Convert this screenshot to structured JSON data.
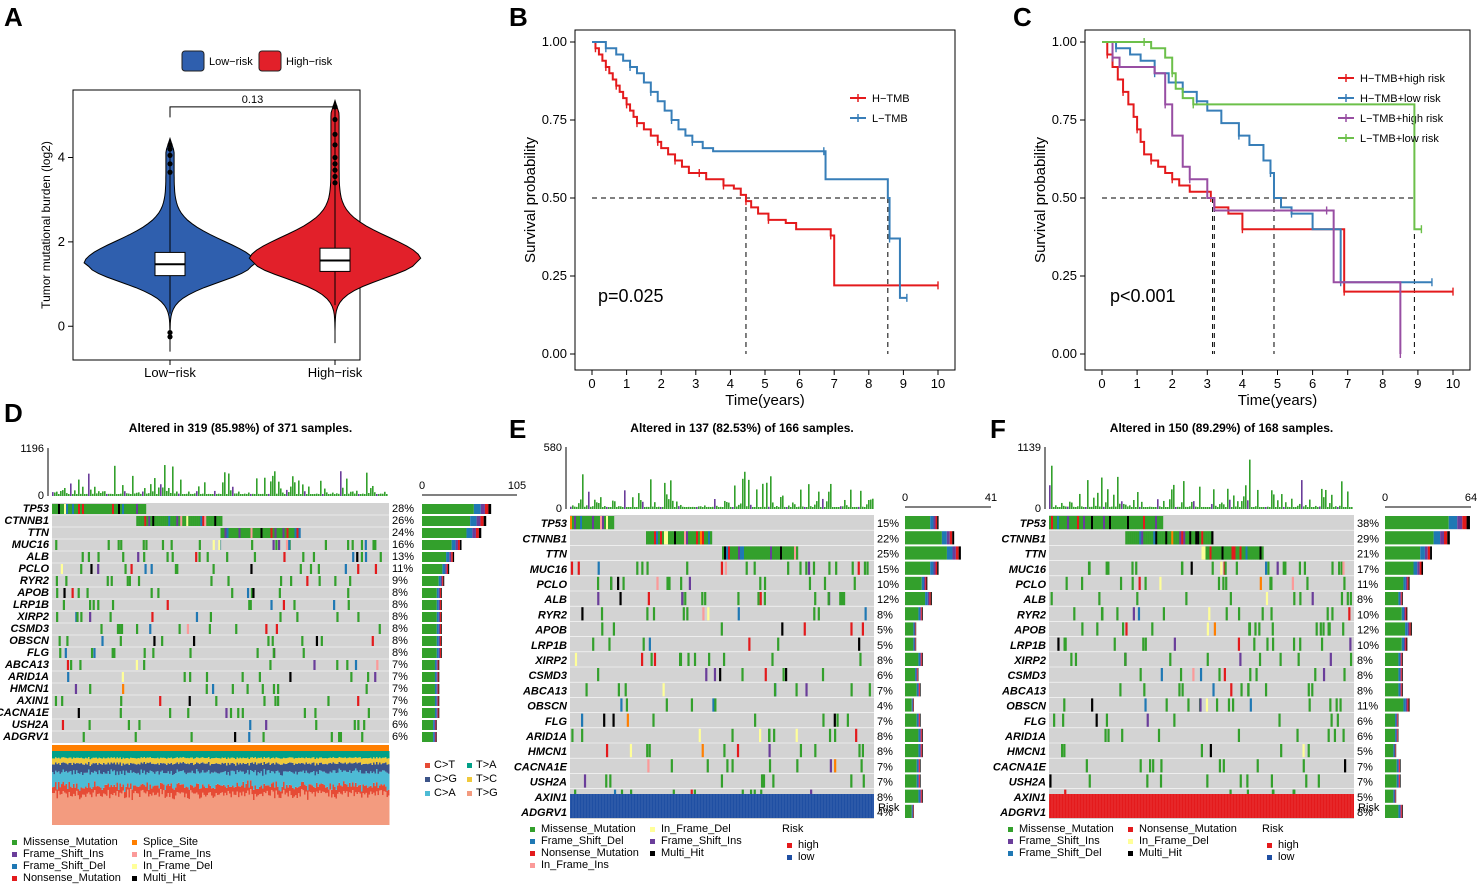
{
  "colors": {
    "low_risk": "#2f5fae",
    "high_risk": "#e2202a",
    "missense": "#33a02c",
    "frame_shift_del": "#1f78b4",
    "frame_shift_ins": "#6a3d9a",
    "nonsense": "#e31a1c",
    "multi_hit": "#000000",
    "splice_site": "#ff7f00",
    "in_frame_ins": "#fb9a99",
    "in_frame_del": "#ffff99",
    "grey": "#d3d3d3",
    "h_tmb": "#e41a1c",
    "l_tmb": "#377eb8",
    "h_high": "#e41a1c",
    "h_low": "#377eb8",
    "l_high": "#984ea3",
    "l_low": "#6cc04a",
    "low_bar": "#1f4fa3",
    "high_bar": "#e41a1c"
  },
  "panel_labels": {
    "a": "A",
    "b": "B",
    "c": "C",
    "d": "D",
    "e": "E",
    "f": "F"
  },
  "chart_data": [
    {
      "id": "A",
      "type": "violin",
      "legend": [
        "Low−risk",
        "High−risk"
      ],
      "categories": [
        "Low−risk",
        "High−risk"
      ],
      "ylabel": "Tumor mutational burden (log2)",
      "yticks": [
        "0",
        "2",
        "4"
      ],
      "ylim": [
        -0.8,
        5.6
      ],
      "pvalue": "0.13",
      "series": [
        {
          "name": "Low−risk",
          "median": 1.47,
          "q1": 1.2,
          "q3": 1.75,
          "whisker_low": 0.3,
          "whisker_high": 4.45,
          "outliers": [
            3.65,
            3.85,
            4.05,
            4.2,
            4.3,
            -0.15,
            -0.25
          ]
        },
        {
          "name": "High−risk",
          "median": 1.56,
          "q1": 1.3,
          "q3": 1.85,
          "whisker_low": 0.5,
          "whisker_high": 5.35,
          "outliers": [
            3.4,
            3.55,
            3.7,
            3.85,
            4.0,
            4.3,
            4.55,
            4.9,
            5.2
          ]
        }
      ]
    },
    {
      "id": "B",
      "type": "line",
      "xlabel": "Time(years)",
      "ylabel": "Survival probability",
      "xticks": [
        "0",
        "1",
        "2",
        "3",
        "4",
        "5",
        "6",
        "7",
        "8",
        "9",
        "10"
      ],
      "yticks": [
        "0.00",
        "0.25",
        "0.50",
        "0.75",
        "1.00"
      ],
      "xlim": [
        0,
        10
      ],
      "ylim": [
        0,
        1
      ],
      "pvalue": "p=0.025",
      "median_times": [
        4.45,
        8.55
      ],
      "series": [
        {
          "name": "H−TMB",
          "steps": [
            [
              0,
              1
            ],
            [
              0.1,
              0.98
            ],
            [
              0.2,
              0.96
            ],
            [
              0.3,
              0.94
            ],
            [
              0.4,
              0.92
            ],
            [
              0.5,
              0.9
            ],
            [
              0.6,
              0.88
            ],
            [
              0.7,
              0.86
            ],
            [
              0.8,
              0.84
            ],
            [
              0.9,
              0.82
            ],
            [
              1.0,
              0.8
            ],
            [
              1.1,
              0.78
            ],
            [
              1.2,
              0.76
            ],
            [
              1.3,
              0.74
            ],
            [
              1.5,
              0.72
            ],
            [
              1.7,
              0.7
            ],
            [
              1.9,
              0.68
            ],
            [
              2.0,
              0.66
            ],
            [
              2.2,
              0.64
            ],
            [
              2.4,
              0.62
            ],
            [
              2.6,
              0.6
            ],
            [
              2.8,
              0.58
            ],
            [
              3.1,
              0.58
            ],
            [
              3.3,
              0.56
            ],
            [
              3.6,
              0.56
            ],
            [
              3.8,
              0.54
            ],
            [
              4.1,
              0.53
            ],
            [
              4.3,
              0.51
            ],
            [
              4.45,
              0.49
            ],
            [
              4.6,
              0.47
            ],
            [
              4.8,
              0.45
            ],
            [
              5.1,
              0.43
            ],
            [
              5.6,
              0.42
            ],
            [
              5.9,
              0.4
            ],
            [
              6.9,
              0.38
            ],
            [
              7.0,
              0.22
            ],
            [
              10.0,
              0.22
            ]
          ]
        },
        {
          "name": "L−TMB",
          "steps": [
            [
              0,
              1
            ],
            [
              0.4,
              0.98
            ],
            [
              0.7,
              0.96
            ],
            [
              0.9,
              0.94
            ],
            [
              1.1,
              0.92
            ],
            [
              1.3,
              0.9
            ],
            [
              1.5,
              0.87
            ],
            [
              1.7,
              0.84
            ],
            [
              1.9,
              0.81
            ],
            [
              2.1,
              0.78
            ],
            [
              2.3,
              0.75
            ],
            [
              2.5,
              0.72
            ],
            [
              2.7,
              0.7
            ],
            [
              2.9,
              0.68
            ],
            [
              3.2,
              0.66
            ],
            [
              3.5,
              0.65
            ],
            [
              6.7,
              0.65
            ],
            [
              6.75,
              0.56
            ],
            [
              8.55,
              0.5
            ],
            [
              8.6,
              0.37
            ],
            [
              8.9,
              0.18
            ],
            [
              9.1,
              0.18
            ]
          ]
        }
      ]
    },
    {
      "id": "C",
      "type": "line",
      "xlabel": "Time(years)",
      "ylabel": "Survival probability",
      "xticks": [
        "0",
        "1",
        "2",
        "3",
        "4",
        "5",
        "6",
        "7",
        "8",
        "9",
        "10"
      ],
      "yticks": [
        "0.00",
        "0.25",
        "0.50",
        "0.75",
        "1.00"
      ],
      "xlim": [
        0,
        10
      ],
      "ylim": [
        0,
        1
      ],
      "pvalue": "p<0.001",
      "median_times": [
        3.15,
        3.2,
        4.9,
        8.9
      ],
      "series": [
        {
          "name": "H−TMB+high risk",
          "steps": [
            [
              0,
              1
            ],
            [
              0.15,
              0.96
            ],
            [
              0.3,
              0.92
            ],
            [
              0.45,
              0.88
            ],
            [
              0.6,
              0.84
            ],
            [
              0.75,
              0.8
            ],
            [
              0.9,
              0.76
            ],
            [
              1.0,
              0.72
            ],
            [
              1.1,
              0.68
            ],
            [
              1.2,
              0.64
            ],
            [
              1.4,
              0.62
            ],
            [
              1.6,
              0.6
            ],
            [
              1.8,
              0.58
            ],
            [
              2.0,
              0.56
            ],
            [
              2.2,
              0.54
            ],
            [
              2.5,
              0.52
            ],
            [
              3.1,
              0.5
            ],
            [
              3.2,
              0.47
            ],
            [
              3.6,
              0.45
            ],
            [
              4.0,
              0.4
            ],
            [
              5.0,
              0.4
            ],
            [
              6.8,
              0.4
            ],
            [
              6.9,
              0.2
            ],
            [
              10.0,
              0.2
            ]
          ]
        },
        {
          "name": "H−TMB+low risk",
          "steps": [
            [
              0,
              1
            ],
            [
              0.4,
              0.98
            ],
            [
              0.8,
              0.96
            ],
            [
              1.1,
              0.94
            ],
            [
              1.5,
              0.9
            ],
            [
              1.9,
              0.87
            ],
            [
              2.3,
              0.84
            ],
            [
              2.7,
              0.81
            ],
            [
              3.0,
              0.78
            ],
            [
              3.4,
              0.74
            ],
            [
              3.9,
              0.7
            ],
            [
              4.2,
              0.67
            ],
            [
              4.6,
              0.62
            ],
            [
              4.8,
              0.58
            ],
            [
              4.9,
              0.5
            ],
            [
              5.1,
              0.47
            ],
            [
              5.4,
              0.45
            ],
            [
              6.0,
              0.4
            ],
            [
              6.7,
              0.4
            ],
            [
              6.8,
              0.23
            ],
            [
              9.4,
              0.23
            ]
          ]
        },
        {
          "name": "L−TMB+high risk",
          "steps": [
            [
              0,
              1
            ],
            [
              0.3,
              0.95
            ],
            [
              0.5,
              0.92
            ],
            [
              1.5,
              0.9
            ],
            [
              1.8,
              0.8
            ],
            [
              2.0,
              0.7
            ],
            [
              2.3,
              0.6
            ],
            [
              2.5,
              0.56
            ],
            [
              3.0,
              0.5
            ],
            [
              3.2,
              0.46
            ],
            [
              6.4,
              0.46
            ],
            [
              6.6,
              0.23
            ],
            [
              8.4,
              0.23
            ],
            [
              8.5,
              0.0
            ]
          ]
        },
        {
          "name": "L−TMB+low risk",
          "steps": [
            [
              0,
              1
            ],
            [
              1.2,
              1.0
            ],
            [
              1.4,
              0.98
            ],
            [
              1.8,
              0.95
            ],
            [
              2.0,
              0.9
            ],
            [
              2.1,
              0.85
            ],
            [
              2.3,
              0.82
            ],
            [
              2.6,
              0.8
            ],
            [
              8.9,
              0.8
            ],
            [
              8.9,
              0.4
            ],
            [
              9.1,
              0.4
            ]
          ]
        }
      ]
    },
    {
      "id": "D",
      "type": "heatmap",
      "title": "Altered in 319 (85.98%) of 371 samples.",
      "tmb_max": "1196",
      "bar_max": "105",
      "genes": [
        "TP53",
        "CTNNB1",
        "TTN",
        "MUC16",
        "ALB",
        "PCLO",
        "RYR2",
        "APOB",
        "LRP1B",
        "XIRP2",
        "CSMD3",
        "OBSCN",
        "FLG",
        "ABCA13",
        "ARID1A",
        "HMCN1",
        "AXIN1",
        "CACNA1E",
        "USH2A",
        "ADGRV1"
      ],
      "percents": [
        "28%",
        "26%",
        "24%",
        "16%",
        "13%",
        "11%",
        "9%",
        "8%",
        "8%",
        "8%",
        "8%",
        "8%",
        "8%",
        "7%",
        "7%",
        "7%",
        "7%",
        "7%",
        "6%",
        "6%"
      ],
      "ti_tv_legend": [
        "C>T",
        "T>A",
        "C>G",
        "T>C",
        "C>A",
        "T>G"
      ],
      "variant_legend": [
        "Missense_Mutation",
        "Splice_Site",
        "Frame_Shift_Ins",
        "In_Frame_Ins",
        "Frame_Shift_Del",
        "In_Frame_Del",
        "Nonsense_Mutation",
        "Multi_Hit"
      ]
    },
    {
      "id": "E",
      "type": "heatmap",
      "title": "Altered in 137 (82.53%) of 166 samples.",
      "tmb_max": "580",
      "bar_max": "41",
      "genes": [
        "TP53",
        "CTNNB1",
        "TTN",
        "MUC16",
        "PCLO",
        "ALB",
        "RYR2",
        "APOB",
        "LRP1B",
        "XIRP2",
        "CSMD3",
        "ABCA13",
        "OBSCN",
        "FLG",
        "ARID1A",
        "HMCN1",
        "CACNA1E",
        "USH2A",
        "AXIN1",
        "ADGRV1"
      ],
      "percents": [
        "15%",
        "22%",
        "25%",
        "15%",
        "10%",
        "12%",
        "8%",
        "5%",
        "5%",
        "8%",
        "6%",
        "7%",
        "4%",
        "7%",
        "8%",
        "8%",
        "7%",
        "7%",
        "8%",
        "4%"
      ],
      "risk_label": "Risk",
      "variant_legend": [
        "Missense_Mutation",
        "In_Frame_Del",
        "Frame_Shift_Del",
        "Frame_Shift_Ins",
        "Nonsense_Mutation",
        "Multi_Hit",
        "In_Frame_Ins"
      ],
      "risk_legend_title": "Risk",
      "risk_legend": [
        "high",
        "low"
      ]
    },
    {
      "id": "F",
      "type": "heatmap",
      "title": "Altered in 150 (89.29%) of 168 samples.",
      "tmb_max": "1139",
      "bar_max": "64",
      "genes": [
        "TP53",
        "CTNNB1",
        "TTN",
        "MUC16",
        "PCLO",
        "ALB",
        "RYR2",
        "APOB",
        "LRP1B",
        "XIRP2",
        "CSMD3",
        "ABCA13",
        "OBSCN",
        "FLG",
        "ARID1A",
        "HMCN1",
        "CACNA1E",
        "USH2A",
        "AXIN1",
        "ADGRV1"
      ],
      "percents": [
        "38%",
        "29%",
        "21%",
        "17%",
        "11%",
        "8%",
        "10%",
        "12%",
        "10%",
        "8%",
        "8%",
        "8%",
        "11%",
        "6%",
        "6%",
        "5%",
        "7%",
        "7%",
        "5%",
        "8%"
      ],
      "risk_label": "Risk",
      "variant_legend": [
        "Missense_Mutation",
        "Nonsense_Mutation",
        "Frame_Shift_Ins",
        "In_Frame_Del",
        "Frame_Shift_Del",
        "Multi_Hit"
      ],
      "risk_legend_title": "Risk",
      "risk_legend": [
        "high",
        "low"
      ]
    }
  ]
}
